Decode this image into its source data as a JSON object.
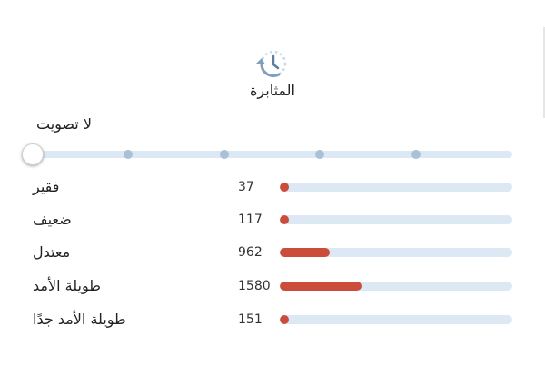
{
  "header": {
    "icon": "clock-history-icon",
    "title": "المثابرة"
  },
  "vote_slider": {
    "label": "لا تصويت",
    "steps": 5,
    "selected_step": 0
  },
  "colors": {
    "accent": "#cc4c3b",
    "track": "#dce8f3",
    "icon": "#7f9fbf"
  },
  "max_count": 4500,
  "rows": [
    {
      "label": "فقير",
      "count": "37",
      "value": 37
    },
    {
      "label": "ضعيف",
      "count": "117",
      "value": 117
    },
    {
      "label": "معتدل",
      "count": "962",
      "value": 962
    },
    {
      "label": "طويلة الأمد",
      "count": "1580",
      "value": 1580
    },
    {
      "label": "طويلة الأمد جدًا",
      "count": "151",
      "value": 151
    }
  ]
}
